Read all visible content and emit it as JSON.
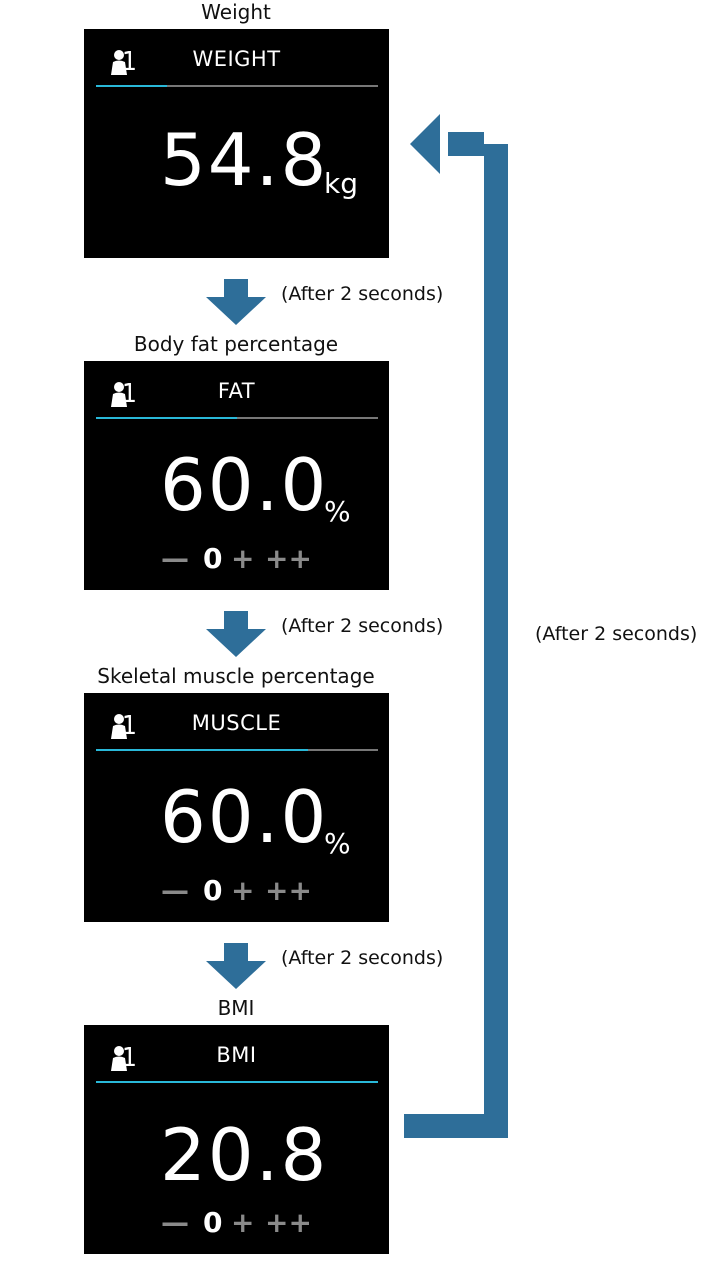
{
  "screens": [
    {
      "caption": "Weight",
      "user": "1",
      "title": "WEIGHT",
      "value": "54.8",
      "unit": "kg",
      "progress": 0.25,
      "scale": null
    },
    {
      "caption": "Body fat percentage",
      "user": "1",
      "title": "FAT",
      "value": "60.0",
      "unit": "%",
      "progress": 0.5,
      "scale": {
        "minus": "—",
        "zero": "0",
        "plus": "+",
        "plusplus": "++"
      }
    },
    {
      "caption": "Skeletal muscle percentage",
      "user": "1",
      "title": "MUSCLE",
      "value": "60.0",
      "unit": "%",
      "progress": 0.75,
      "scale": {
        "minus": "—",
        "zero": "0",
        "plus": "+",
        "plusplus": "++"
      }
    },
    {
      "caption": "BMI",
      "user": "1",
      "title": "BMI",
      "value": "20.8",
      "unit": "",
      "progress": 1.0,
      "scale": {
        "minus": "—",
        "zero": "0",
        "plus": "+",
        "plusplus": "++"
      }
    }
  ],
  "transitions": [
    "(After 2 seconds)",
    "(After 2 seconds)",
    "(After 2 seconds)"
  ],
  "loop_note": "(After 2 seconds)",
  "colors": {
    "arrow": "#2e6e99",
    "bar_fill": "#29b8d8",
    "bar_track": "#777777",
    "screen_bg": "#000000",
    "scale_dim": "#8a8a8a"
  },
  "icons": {
    "user": "person-icon",
    "arrow": "down-arrow-icon",
    "loop": "loop-back-arrow-icon"
  }
}
